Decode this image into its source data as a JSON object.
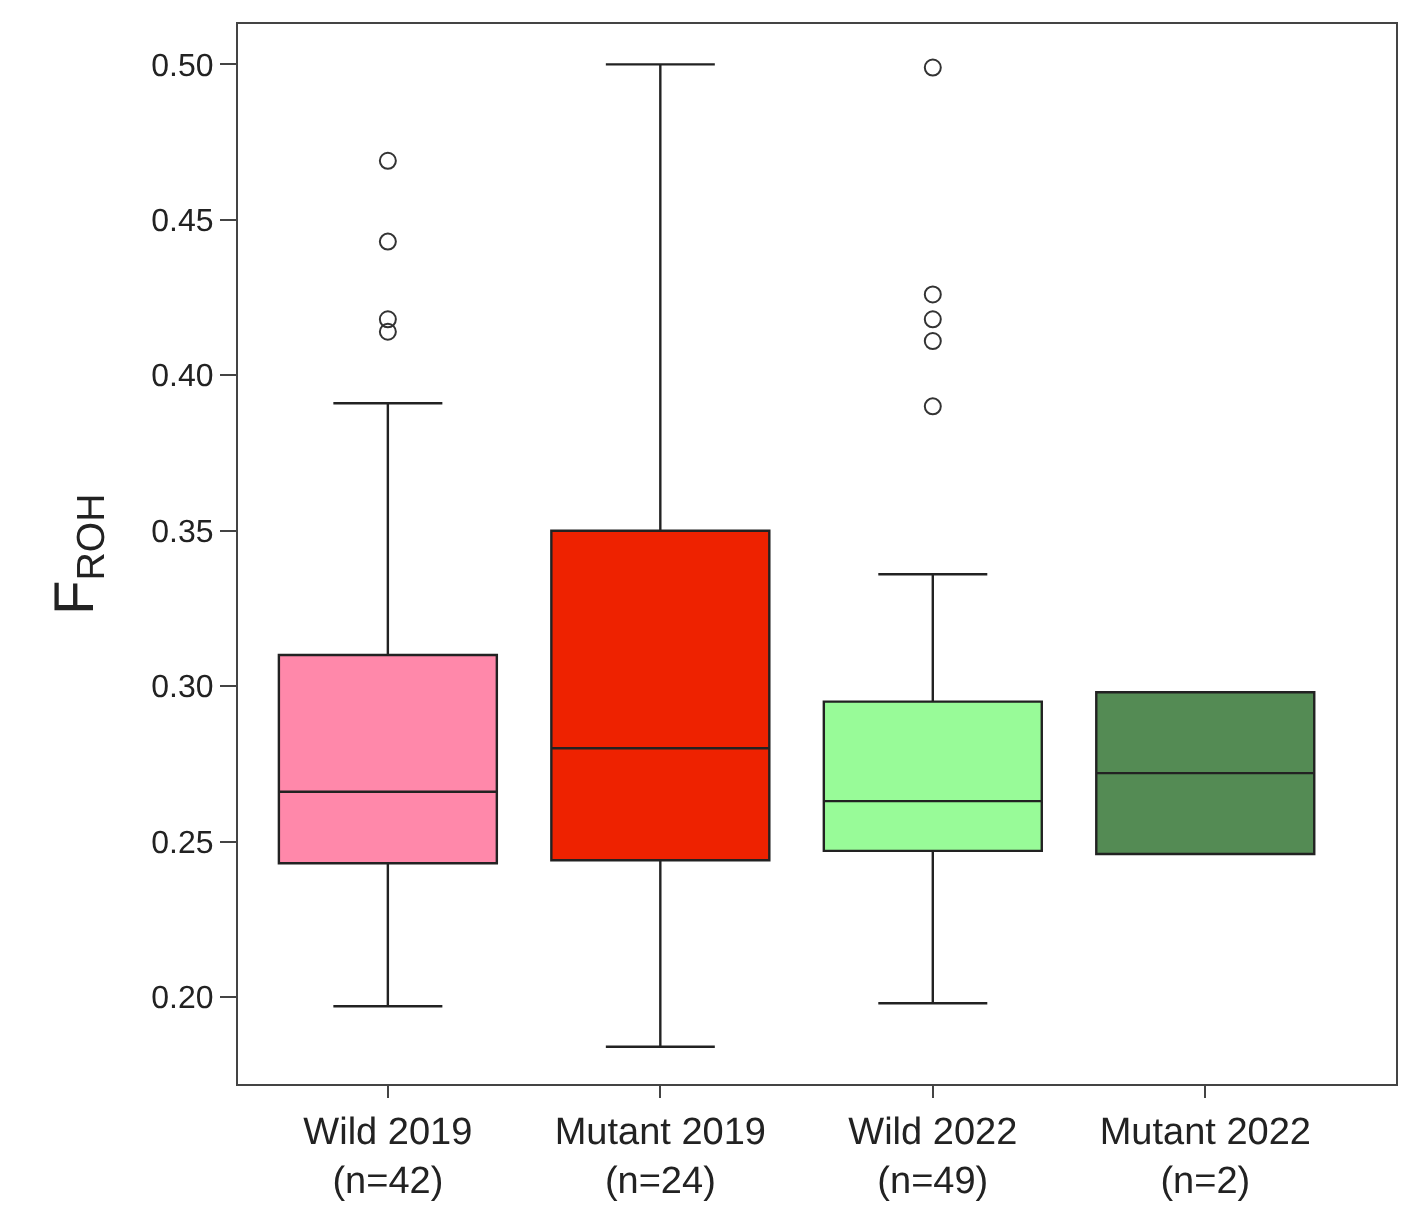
{
  "chart_data": {
    "type": "box",
    "ylabel": "F$_{ROH}$",
    "categories": [
      "Wild 2019\n(n=42)",
      "Mutant 2019\n(n=24)",
      "Wild 2022\n(n=49)",
      "Mutant 2022\n(n=2)"
    ],
    "colors": [
      "#ff88aa",
      "#ee2200",
      "#98fb98",
      "#548b54"
    ],
    "boxes": [
      {
        "low": 0.197,
        "q1": 0.243,
        "median": 0.266,
        "q3": 0.31,
        "high": 0.391,
        "outliers": [
          0.469,
          0.443,
          0.418,
          0.414
        ]
      },
      {
        "low": 0.184,
        "q1": 0.244,
        "median": 0.28,
        "q3": 0.35,
        "high": 0.5
      },
      {
        "low": 0.198,
        "q1": 0.247,
        "median": 0.263,
        "q3": 0.295,
        "high": 0.336,
        "outliers": [
          0.499,
          0.426,
          0.418,
          0.411,
          0.39
        ]
      },
      {
        "low": 0.246,
        "q1": 0.246,
        "median": 0.272,
        "q3": 0.298,
        "high": 0.298
      }
    ],
    "ylim": [
      0.172,
      0.513
    ],
    "yticks": [
      {
        "value": 0.2,
        "label": "0.20"
      },
      0.25,
      {
        "value": 0.3,
        "label": "0.30"
      },
      0.35,
      {
        "value": 0.4,
        "label": "0.40"
      },
      0.45,
      {
        "value": 0.5,
        "label": "0.50"
      }
    ]
  }
}
